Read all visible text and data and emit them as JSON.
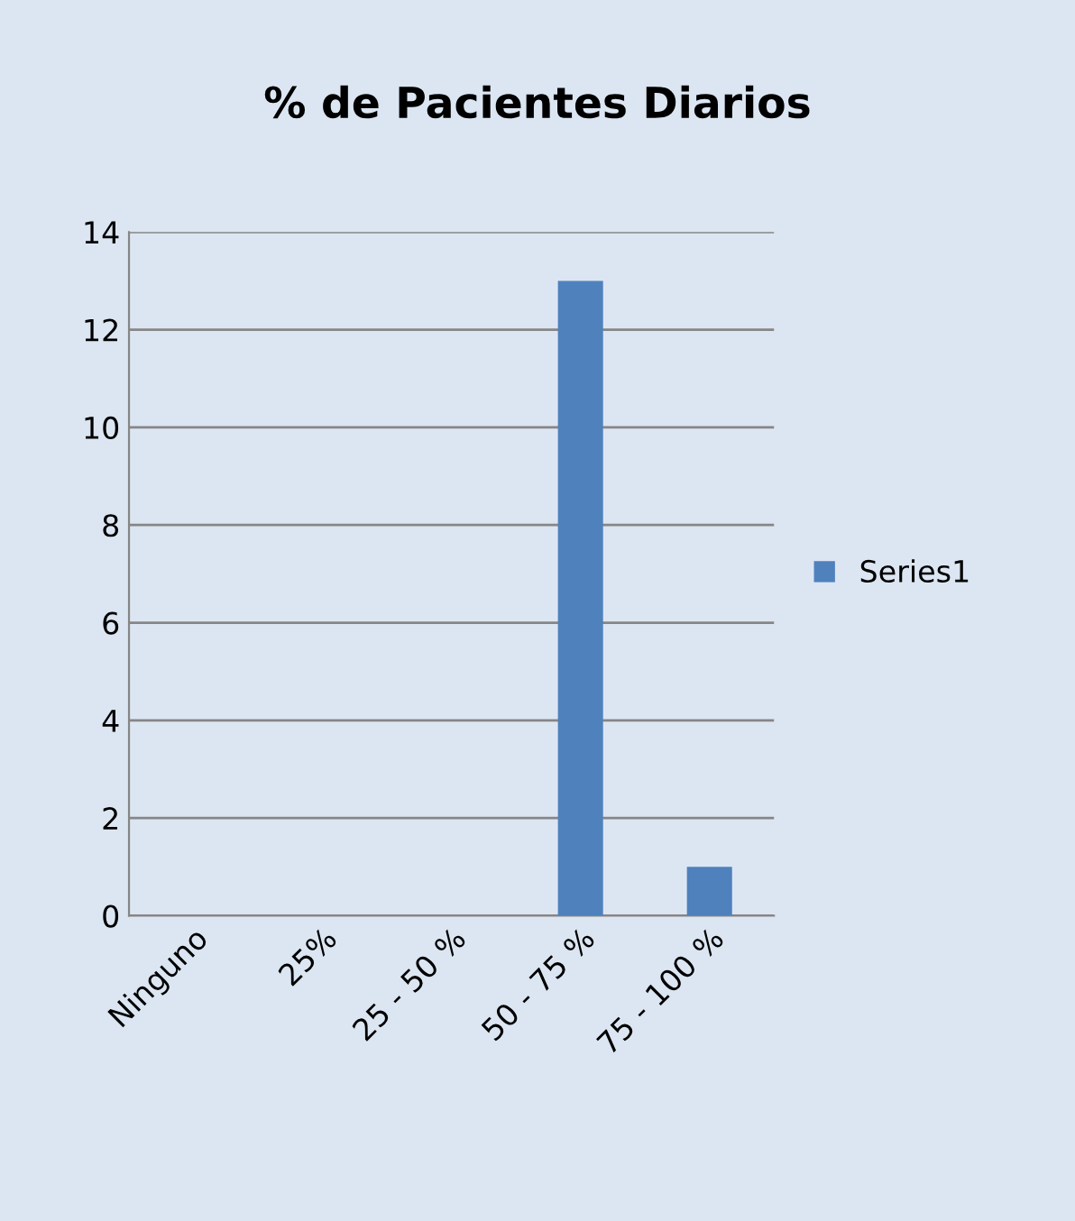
{
  "chart_data": {
    "type": "bar",
    "title": "% de Pacientes Diarios",
    "categories": [
      "Ninguno",
      "25%",
      "25 - 50 %",
      "50 - 75 %",
      "75 - 100 %"
    ],
    "series": [
      {
        "name": "Series1",
        "color": "#4f81bd",
        "values": [
          0,
          0,
          0,
          13,
          1
        ]
      }
    ],
    "ylim": [
      0,
      14
    ],
    "yticks": [
      0,
      2,
      4,
      6,
      8,
      10,
      12,
      14
    ],
    "grid": "y",
    "legend": "right"
  }
}
